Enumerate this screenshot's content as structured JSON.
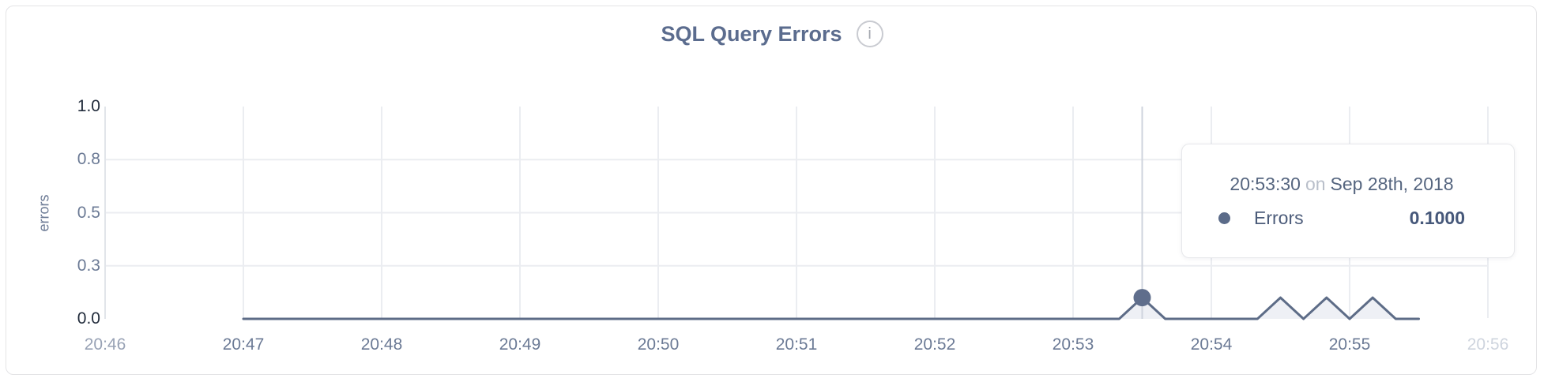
{
  "card": {
    "title": "SQL Query Errors",
    "info_icon": "i"
  },
  "chart_data": {
    "type": "line",
    "title": "SQL Query Errors",
    "xlabel": "",
    "ylabel": "errors",
    "ylim": [
      0,
      1.0
    ],
    "x_range": [
      "20:46",
      "20:56"
    ],
    "grid": true,
    "legend_position": "none",
    "colors": {
      "series_line": "#5d6c87",
      "series_fill": "#eef0f5",
      "hover_dot": "#5f6e8c",
      "crosshair": "#cfd4dd",
      "gridline": "#ebedf1",
      "axis_line": "#e2e5ea"
    },
    "y_ticks": [
      {
        "value": 0.0,
        "label": "0.0",
        "style": "strong"
      },
      {
        "value": 0.25,
        "label": "0.3",
        "style": "normal"
      },
      {
        "value": 0.5,
        "label": "0.5",
        "style": "normal"
      },
      {
        "value": 0.75,
        "label": "0.8",
        "style": "normal"
      },
      {
        "value": 1.0,
        "label": "1.0",
        "style": "strong"
      }
    ],
    "x_ticks": [
      {
        "time": "20:46",
        "style": "muted"
      },
      {
        "time": "20:47",
        "style": "normal"
      },
      {
        "time": "20:48",
        "style": "normal"
      },
      {
        "time": "20:49",
        "style": "normal"
      },
      {
        "time": "20:50",
        "style": "normal"
      },
      {
        "time": "20:51",
        "style": "normal"
      },
      {
        "time": "20:52",
        "style": "normal"
      },
      {
        "time": "20:53",
        "style": "normal"
      },
      {
        "time": "20:54",
        "style": "normal"
      },
      {
        "time": "20:55",
        "style": "normal"
      },
      {
        "time": "20:56",
        "style": "faint"
      }
    ],
    "series": [
      {
        "name": "Errors",
        "points": [
          {
            "t": "20:47:00",
            "v": 0
          },
          {
            "t": "20:53:20",
            "v": 0
          },
          {
            "t": "20:53:30",
            "v": 0.1
          },
          {
            "t": "20:53:40",
            "v": 0
          },
          {
            "t": "20:54:20",
            "v": 0
          },
          {
            "t": "20:54:30",
            "v": 0.1
          },
          {
            "t": "20:54:40",
            "v": 0
          },
          {
            "t": "20:54:50",
            "v": 0.1
          },
          {
            "t": "20:55:00",
            "v": 0
          },
          {
            "t": "20:55:10",
            "v": 0.1
          },
          {
            "t": "20:55:20",
            "v": 0
          },
          {
            "t": "20:55:30",
            "v": 0
          }
        ]
      }
    ],
    "hover_point": {
      "time": "20:53:30",
      "value": 0.1,
      "series": "Errors"
    }
  },
  "tooltip": {
    "time": "20:53:30",
    "conjunction": "on",
    "date": "Sep 28th, 2018",
    "series_label": "Errors",
    "value": "0.1000"
  }
}
